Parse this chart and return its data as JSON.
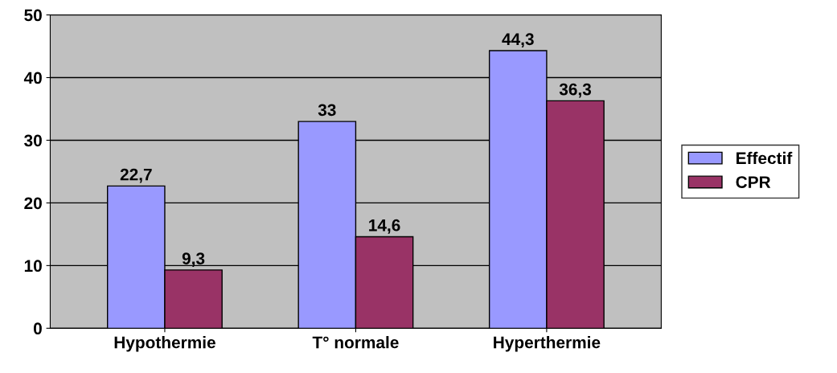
{
  "chart_data": {
    "type": "bar",
    "categories": [
      "Hypothermie",
      "T° normale",
      "Hyperthermie"
    ],
    "series": [
      {
        "name": "Effectif",
        "color": "#9999ff",
        "values": [
          22.7,
          33,
          44.3
        ],
        "value_labels": [
          "22,7",
          "33",
          "44,3"
        ]
      },
      {
        "name": "CPR",
        "color": "#993366",
        "values": [
          9.3,
          14.6,
          36.3
        ],
        "value_labels": [
          "9,3",
          "14,6",
          "36,3"
        ]
      }
    ],
    "ylim": [
      0,
      50
    ],
    "yticks": [
      0,
      10,
      20,
      30,
      40,
      50
    ],
    "grid": "y",
    "legend": "right"
  }
}
